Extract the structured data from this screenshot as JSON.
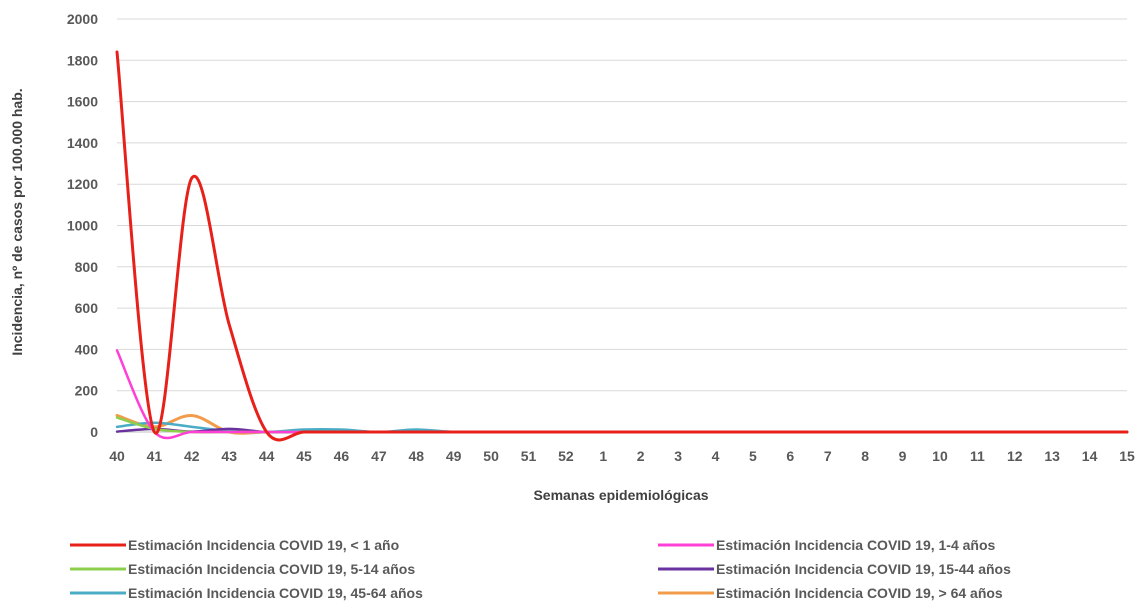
{
  "chart_data": {
    "type": "line",
    "title": "",
    "xlabel": "Semanas epidemiológicas",
    "ylabel": "Incidencia, nº de casos por 100.000 hab.",
    "ylim": [
      0,
      2000
    ],
    "yticks": [
      0,
      200,
      400,
      600,
      800,
      1000,
      1200,
      1400,
      1600,
      1800,
      2000
    ],
    "categories": [
      "40",
      "41",
      "42",
      "43",
      "44",
      "45",
      "46",
      "47",
      "48",
      "49",
      "50",
      "51",
      "52",
      "1",
      "2",
      "3",
      "4",
      "5",
      "6",
      "7",
      "8",
      "9",
      "10",
      "11",
      "12",
      "13",
      "14",
      "15"
    ],
    "grid": "horizontal",
    "legend": "bottom",
    "series": [
      {
        "name": "Estimación Incidencia COVID 19, < 1 año",
        "color": "#e8201a",
        "width": 3,
        "values": [
          1840,
          0,
          1230,
          520,
          0,
          0,
          0,
          0,
          0,
          0,
          0,
          0,
          0,
          0,
          0,
          0,
          0,
          0,
          0,
          0,
          0,
          0,
          0,
          0,
          0,
          0,
          0,
          0
        ]
      },
      {
        "name": "Estimación Incidencia COVID 19, 1-4 años",
        "color": "#ff3fd5",
        "width": 2.5,
        "values": [
          395,
          0,
          0,
          0,
          0,
          0,
          0,
          0,
          0,
          0,
          0,
          0,
          0,
          0,
          0,
          0,
          0,
          0,
          0,
          0,
          0,
          0,
          0,
          0,
          0,
          0,
          0,
          0
        ]
      },
      {
        "name": "Estimación Incidencia COVID 19, 5-14 años",
        "color": "#8ccf4d",
        "width": 2.5,
        "values": [
          70,
          15,
          0,
          0,
          0,
          0,
          0,
          0,
          0,
          0,
          0,
          0,
          0,
          0,
          0,
          0,
          0,
          0,
          0,
          0,
          0,
          0,
          0,
          0,
          0,
          0,
          0,
          0
        ]
      },
      {
        "name": "Estimación Incidencia COVID 19, 15-44 años",
        "color": "#6a329f",
        "width": 2.5,
        "values": [
          2,
          15,
          2,
          15,
          0,
          0,
          0,
          0,
          0,
          0,
          0,
          0,
          0,
          0,
          0,
          0,
          0,
          0,
          0,
          0,
          0,
          0,
          0,
          0,
          0,
          0,
          0,
          0
        ]
      },
      {
        "name": "Estimación Incidencia COVID 19, 45-64 años",
        "color": "#4bacc6",
        "width": 2.5,
        "values": [
          25,
          45,
          25,
          5,
          0,
          12,
          12,
          0,
          12,
          0,
          0,
          0,
          0,
          0,
          0,
          0,
          0,
          0,
          0,
          0,
          0,
          0,
          0,
          0,
          0,
          0,
          0,
          0
        ]
      },
      {
        "name": "Estimación Incidencia COVID 19, > 64 años",
        "color": "#f29b4a",
        "width": 3,
        "values": [
          80,
          25,
          80,
          0,
          0,
          0,
          0,
          0,
          0,
          0,
          0,
          0,
          0,
          0,
          0,
          0,
          0,
          0,
          0,
          0,
          0,
          0,
          0,
          0,
          0,
          0,
          0,
          0
        ]
      }
    ]
  }
}
